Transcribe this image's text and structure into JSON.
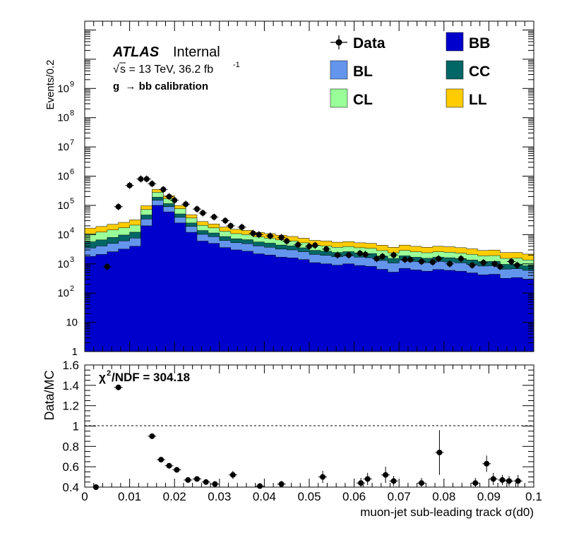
{
  "top_panel": {
    "experiment": "ATLAS",
    "status": "Internal",
    "energy_sqrt": "√",
    "energy_text": "s = 13 TeV, 36.2 fb",
    "energy_sup": "-1",
    "selection": "g  → bb calibration",
    "ylabel": "Events/0.2",
    "yticks": [
      "1",
      "10",
      "10",
      "10",
      "10",
      "10",
      "10",
      "10",
      "10",
      "10"
    ],
    "yticks_exp": [
      "",
      "",
      "2",
      "3",
      "4",
      "5",
      "6",
      "7",
      "8",
      "9"
    ]
  },
  "legend": {
    "data_label": "Data",
    "items": [
      {
        "name": "BB",
        "color": "#0000cc"
      },
      {
        "name": "BL",
        "color": "#6495ed"
      },
      {
        "name": "CC",
        "color": "#006666"
      },
      {
        "name": "CL",
        "color": "#99ff99"
      },
      {
        "name": "LL",
        "color": "#ffcc00"
      }
    ]
  },
  "ratio_panel": {
    "ylabel": "Data/MC",
    "chi2_prefix": "χ",
    "chi2_sup": "2",
    "chi2_text": "/NDF = 304.18",
    "yticks": [
      "0.4",
      "0.6",
      "0.8",
      "1",
      "1.2",
      "1.4",
      "1.6"
    ],
    "ylim": [
      0.4,
      1.6
    ]
  },
  "xaxis": {
    "label": "muon-jet sub-leading track σ(d0)",
    "ticks": [
      "0",
      "0.01",
      "0.02",
      "0.03",
      "0.04",
      "0.05",
      "0.06",
      "0.07",
      "0.08",
      "0.09",
      "0.1"
    ]
  },
  "chart_data": [
    {
      "type": "area",
      "scale": "log",
      "xlim": [
        0,
        0.1
      ],
      "ylim": [
        1,
        200000000000
      ],
      "ylabel": "Events/0.2",
      "legend_placement": "top-right",
      "x": [
        0.0,
        0.0025,
        0.005,
        0.0075,
        0.01,
        0.0125,
        0.015,
        0.0175,
        0.02,
        0.0225,
        0.025,
        0.0275,
        0.03,
        0.0325,
        0.035,
        0.0375,
        0.04,
        0.0425,
        0.045,
        0.0475,
        0.05,
        0.0525,
        0.055,
        0.0575,
        0.06,
        0.0625,
        0.065,
        0.0675,
        0.07,
        0.0725,
        0.075,
        0.0775,
        0.08,
        0.0825,
        0.085,
        0.0875,
        0.09,
        0.0925,
        0.095,
        0.0975,
        0.1
      ],
      "series": [
        {
          "name": "BB",
          "values": [
            1800,
            2100,
            2600,
            3200,
            4000,
            20000,
            100000,
            60000,
            25000,
            12000,
            6000,
            5000,
            3600,
            3000,
            2700,
            2200,
            2000,
            1700,
            1600,
            1400,
            1100,
            1000,
            900,
            1000,
            880,
            820,
            650,
            520,
            700,
            620,
            560,
            640,
            600,
            560,
            490,
            420,
            440,
            320,
            340,
            300,
            300
          ]
        },
        {
          "name": "BL",
          "values": [
            1700,
            2000,
            2400,
            2900,
            3600,
            14000,
            50000,
            30000,
            14000,
            7000,
            4200,
            3500,
            2700,
            2300,
            2200,
            1900,
            1700,
            1500,
            1400,
            1200,
            1000,
            950,
            850,
            900,
            820,
            800,
            650,
            550,
            640,
            580,
            540,
            580,
            560,
            520,
            470,
            420,
            420,
            340,
            340,
            300,
            300
          ]
        },
        {
          "name": "CC",
          "values": [
            2200,
            2500,
            3000,
            3600,
            4500,
            13000,
            40000,
            25000,
            12000,
            6000,
            3600,
            2900,
            2300,
            1900,
            1800,
            1500,
            1400,
            1200,
            1100,
            950,
            800,
            760,
            700,
            720,
            660,
            620,
            540,
            460,
            540,
            480,
            450,
            480,
            460,
            430,
            400,
            360,
            360,
            300,
            300,
            260,
            260
          ]
        },
        {
          "name": "CL",
          "values": [
            5000,
            5600,
            6500,
            7500,
            9000,
            25000,
            90000,
            55000,
            26000,
            12000,
            7000,
            5600,
            4400,
            3600,
            3300,
            2800,
            2500,
            2200,
            1950,
            1700,
            1450,
            1380,
            1250,
            1300,
            1200,
            1150,
            1000,
            850,
            1000,
            900,
            850,
            900,
            880,
            820,
            760,
            680,
            700,
            580,
            580,
            500,
            500
          ]
        },
        {
          "name": "LL",
          "values": [
            6000,
            6800,
            8000,
            9000,
            11000,
            25000,
            75000,
            45000,
            22000,
            11000,
            7200,
            6200,
            5200,
            4400,
            4000,
            3500,
            3200,
            2900,
            2600,
            2300,
            2000,
            1950,
            1800,
            1850,
            1700,
            1650,
            1500,
            1300,
            1500,
            1400,
            1300,
            1400,
            1350,
            1250,
            1150,
            1000,
            1050,
            900,
            900,
            800,
            800
          ]
        }
      ],
      "data_points": {
        "name": "Data",
        "x": [
          0.005,
          0.0075,
          0.01,
          0.0125,
          0.0138,
          0.015,
          0.0175,
          0.0188,
          0.02,
          0.0225,
          0.025,
          0.0263,
          0.0288,
          0.0313,
          0.0325,
          0.035,
          0.0375,
          0.0388,
          0.0413,
          0.0438,
          0.045,
          0.0475,
          0.05,
          0.0513,
          0.0538,
          0.0563,
          0.0588,
          0.0613,
          0.0625,
          0.065,
          0.0663,
          0.0688,
          0.0713,
          0.0725,
          0.075,
          0.0775,
          0.0788,
          0.0813,
          0.0838,
          0.0863,
          0.0888,
          0.0913,
          0.0925,
          0.095,
          0.0963
        ],
        "y": [
          800,
          90000,
          480000,
          800000,
          800000,
          550000,
          350000,
          200000,
          150000,
          110000,
          75000,
          55000,
          40000,
          30000,
          20000,
          18000,
          11000,
          10000,
          9000,
          8000,
          6000,
          4500,
          4000,
          4300,
          3200,
          2000,
          2000,
          2300,
          2100,
          1500,
          1800,
          2000,
          1400,
          1400,
          1200,
          1150,
          1500,
          1000,
          1500,
          900,
          1100,
          1000,
          800,
          1200,
          900
        ]
      }
    },
    {
      "type": "scatter",
      "ylabel": "Data/MC",
      "xlabel": "muon-jet sub-leading track σ(d0)",
      "xlim": [
        0,
        0.1
      ],
      "ylim": [
        0.4,
        1.6
      ],
      "reference_line": 1.0,
      "annotation": "χ2/NDF = 304.18",
      "x": [
        0.0025,
        0.0075,
        0.015,
        0.017,
        0.0188,
        0.0205,
        0.023,
        0.025,
        0.027,
        0.029,
        0.033,
        0.039,
        0.0438,
        0.053,
        0.0615,
        0.063,
        0.067,
        0.0688,
        0.075,
        0.079,
        0.087,
        0.0895,
        0.091,
        0.093,
        0.0945,
        0.0965
      ],
      "y": [
        0.4,
        1.38,
        0.9,
        0.67,
        0.61,
        0.57,
        0.47,
        0.48,
        0.45,
        0.43,
        0.52,
        0.41,
        0.43,
        0.5,
        0.44,
        0.48,
        0.52,
        0.46,
        0.44,
        0.74,
        0.44,
        0.63,
        0.48,
        0.47,
        0.46,
        0.46
      ],
      "yerr": [
        0,
        0.02,
        0.01,
        0.01,
        0.01,
        0.01,
        0.01,
        0.01,
        0.01,
        0.01,
        0.04,
        0.02,
        0.03,
        0.06,
        0.05,
        0.06,
        0.08,
        0.05,
        0.05,
        0.22,
        0.05,
        0.08,
        0.06,
        0.05,
        0.05,
        0.06
      ]
    }
  ]
}
